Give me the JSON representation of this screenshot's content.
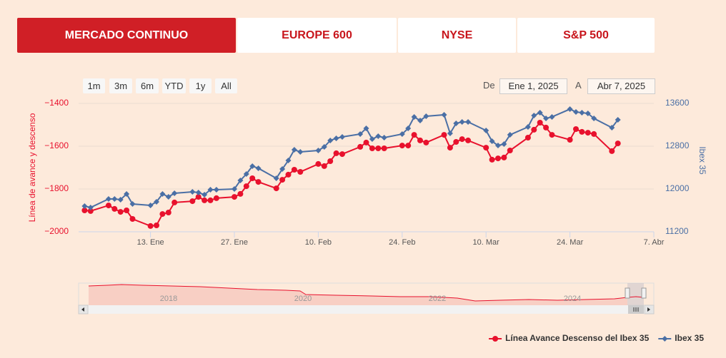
{
  "tabs": [
    {
      "label": "MERCADO CONTINUO",
      "active": true
    },
    {
      "label": "EUROPE 600",
      "active": false
    },
    {
      "label": "NYSE",
      "active": false
    },
    {
      "label": "S&P 500",
      "active": false
    }
  ],
  "range_buttons": [
    "1m",
    "3m",
    "6m",
    "YTD",
    "1y",
    "All"
  ],
  "date_range": {
    "from_label": "De",
    "from": "Ene 1, 2025",
    "to_label": "A",
    "to": "Abr 7, 2025"
  },
  "navigator": {
    "labels": [
      "2018",
      "2020",
      "2022",
      "2024"
    ]
  },
  "chart_data": {
    "type": "line",
    "ylabel": "Línea de avance y descenso",
    "y2label": "Ibex 35",
    "grid": true,
    "xlim": [
      "2025-01-01",
      "2025-04-07"
    ],
    "xticks": [
      {
        "value": "2025-01-13",
        "label": "13. Ene"
      },
      {
        "value": "2025-01-27",
        "label": "27. Ene"
      },
      {
        "value": "2025-02-10",
        "label": "10. Feb"
      },
      {
        "value": "2025-02-24",
        "label": "24. Feb"
      },
      {
        "value": "2025-03-10",
        "label": "10. Mar"
      },
      {
        "value": "2025-03-24",
        "label": "24. Mar"
      },
      {
        "value": "2025-04-07",
        "label": "7. Abr"
      }
    ],
    "ylim": [
      -2000,
      -1400
    ],
    "yticks": [
      {
        "value": -2000,
        "label": "−2000"
      },
      {
        "value": -1800,
        "label": "−1800"
      },
      {
        "value": -1600,
        "label": "−1600"
      },
      {
        "value": -1400,
        "label": "−1400"
      }
    ],
    "y2lim": [
      11200,
      13600
    ],
    "y2ticks": [
      11200,
      12000,
      12800,
      13600
    ],
    "x": [
      "2025-01-02",
      "2025-01-03",
      "2025-01-06",
      "2025-01-07",
      "2025-01-08",
      "2025-01-09",
      "2025-01-10",
      "2025-01-13",
      "2025-01-14",
      "2025-01-15",
      "2025-01-16",
      "2025-01-17",
      "2025-01-20",
      "2025-01-21",
      "2025-01-22",
      "2025-01-23",
      "2025-01-24",
      "2025-01-27",
      "2025-01-28",
      "2025-01-29",
      "2025-01-30",
      "2025-01-31",
      "2025-02-03",
      "2025-02-04",
      "2025-02-05",
      "2025-02-06",
      "2025-02-07",
      "2025-02-10",
      "2025-02-11",
      "2025-02-12",
      "2025-02-13",
      "2025-02-14",
      "2025-02-17",
      "2025-02-18",
      "2025-02-19",
      "2025-02-20",
      "2025-02-21",
      "2025-02-24",
      "2025-02-25",
      "2025-02-26",
      "2025-02-27",
      "2025-02-28",
      "2025-03-03",
      "2025-03-04",
      "2025-03-05",
      "2025-03-06",
      "2025-03-07",
      "2025-03-10",
      "2025-03-11",
      "2025-03-12",
      "2025-03-13",
      "2025-03-14",
      "2025-03-17",
      "2025-03-18",
      "2025-03-19",
      "2025-03-20",
      "2025-03-21",
      "2025-03-24",
      "2025-03-25",
      "2025-03-26",
      "2025-03-27",
      "2025-03-28",
      "2025-03-31",
      "2025-04-01"
    ],
    "series": [
      {
        "name": "Línea Avance Descenso del Ibex 35",
        "color": "#e8112d",
        "marker": "circle",
        "values": [
          -1900,
          -1903,
          -1877,
          -1893,
          -1907,
          -1900,
          -1940,
          -1973,
          -1970,
          -1917,
          -1910,
          -1863,
          -1857,
          -1837,
          -1853,
          -1853,
          -1843,
          -1837,
          -1823,
          -1787,
          -1750,
          -1767,
          -1797,
          -1757,
          -1733,
          -1710,
          -1720,
          -1683,
          -1693,
          -1670,
          -1633,
          -1637,
          -1603,
          -1583,
          -1610,
          -1610,
          -1610,
          -1597,
          -1597,
          -1547,
          -1573,
          -1583,
          -1547,
          -1607,
          -1580,
          -1567,
          -1573,
          -1607,
          -1663,
          -1657,
          -1653,
          -1620,
          -1560,
          -1523,
          -1490,
          -1513,
          -1547,
          -1570,
          -1520,
          -1533,
          -1537,
          -1543,
          -1623,
          -1587
        ]
      },
      {
        "name": "Ibex 35",
        "color": "#4a6fa5",
        "marker": "diamond",
        "axis": "y2",
        "values": [
          11680,
          11653,
          11813,
          11813,
          11800,
          11907,
          11720,
          11693,
          11760,
          11907,
          11853,
          11920,
          11947,
          11933,
          11893,
          11987,
          11987,
          12000,
          12160,
          12280,
          12427,
          12387,
          12200,
          12373,
          12533,
          12733,
          12693,
          12720,
          12787,
          12907,
          12947,
          12973,
          13027,
          13133,
          12933,
          12987,
          12960,
          13027,
          13133,
          13347,
          13280,
          13360,
          13387,
          13040,
          13227,
          13253,
          13253,
          13093,
          12893,
          12813,
          12840,
          13013,
          13160,
          13373,
          13427,
          13320,
          13347,
          13493,
          13440,
          13427,
          13413,
          13320,
          13147,
          13293
        ]
      }
    ]
  }
}
